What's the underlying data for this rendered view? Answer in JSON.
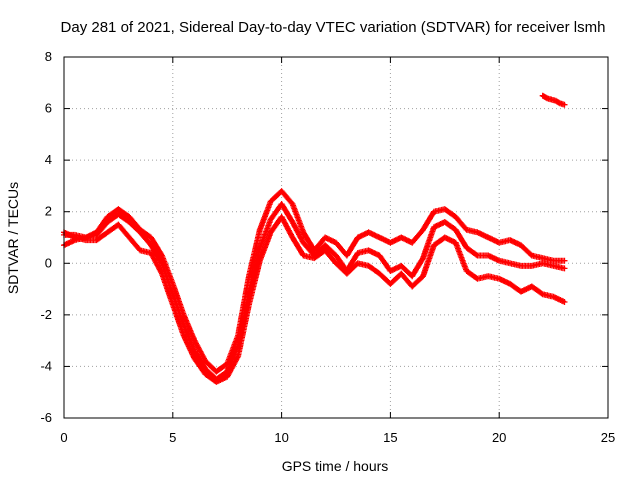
{
  "chart_data": {
    "type": "scatter",
    "title": "Day 281 of 2021, Sidereal Day-to-day VTEC variation (SDTVAR) for receiver lsmh",
    "xlabel": "GPS time / hours",
    "ylabel": "SDTVAR / TECUs",
    "xlim": [
      0,
      25
    ],
    "ylim": [
      -6,
      8
    ],
    "xticks": [
      0,
      5,
      10,
      15,
      20,
      25
    ],
    "yticks": [
      -6,
      -4,
      -2,
      0,
      2,
      4,
      6,
      8
    ],
    "grid": true,
    "marker": "+",
    "series_color": "#ff0000",
    "series": [
      {
        "name": "track-1",
        "x": [
          0.0,
          0.5,
          1.0,
          1.5,
          2.0,
          2.5,
          3.0,
          3.5,
          4.0,
          4.5,
          5.0,
          5.5,
          6.0,
          6.5,
          7.0,
          7.5,
          8.0,
          8.5,
          9.0,
          9.5,
          10.0,
          10.5,
          11.0,
          11.5,
          12.0,
          12.5,
          13.0,
          13.5,
          14.0,
          14.5,
          15.0,
          15.5,
          16.0,
          16.5,
          17.0,
          17.5,
          18.0,
          18.5,
          19.0,
          19.5,
          20.0,
          20.5,
          21.0,
          21.5,
          22.0,
          22.5,
          23.0
        ],
        "y": [
          1.1,
          1.1,
          1.0,
          1.2,
          1.8,
          2.1,
          1.8,
          1.3,
          1.0,
          0.3,
          -0.8,
          -2.0,
          -3.0,
          -3.8,
          -4.2,
          -3.9,
          -2.8,
          -0.5,
          1.3,
          2.4,
          2.8,
          2.3,
          1.2,
          0.5,
          1.0,
          0.8,
          0.3,
          1.0,
          1.2,
          1.0,
          0.8,
          1.0,
          0.8,
          1.3,
          2.0,
          2.1,
          1.8,
          1.3,
          1.2,
          1.0,
          0.8,
          0.9,
          0.7,
          0.3,
          0.2,
          0.1,
          0.1
        ]
      },
      {
        "name": "track-2",
        "x": [
          0.0,
          0.5,
          1.0,
          1.5,
          2.0,
          2.5,
          3.0,
          3.5,
          4.0,
          4.5,
          5.0,
          5.5,
          6.0,
          6.5,
          7.0,
          7.5,
          8.0,
          8.5,
          9.0,
          9.5,
          10.0,
          10.5,
          11.0,
          11.5,
          12.0,
          12.5,
          13.0,
          13.5,
          14.0,
          14.5,
          15.0,
          15.5,
          16.0,
          16.5,
          17.0,
          17.5,
          18.0,
          18.5,
          19.0,
          19.5,
          20.0,
          20.5,
          21.0,
          21.5,
          22.0,
          22.5,
          23.0
        ],
        "y": [
          0.7,
          0.9,
          1.0,
          1.1,
          1.6,
          1.9,
          1.6,
          1.2,
          0.7,
          0.0,
          -1.2,
          -2.4,
          -3.4,
          -4.1,
          -4.5,
          -4.2,
          -3.2,
          -1.1,
          0.6,
          1.7,
          2.3,
          1.6,
          0.8,
          0.3,
          0.7,
          0.3,
          -0.3,
          0.4,
          0.5,
          0.3,
          -0.3,
          -0.1,
          -0.5,
          0.2,
          1.4,
          1.6,
          1.3,
          0.6,
          0.3,
          0.3,
          0.1,
          0.0,
          -0.1,
          -0.1,
          0.0,
          -0.1,
          -0.2
        ]
      },
      {
        "name": "track-3",
        "x": [
          0.0,
          0.5,
          1.0,
          1.5,
          2.0,
          2.5,
          3.0,
          3.5,
          4.0,
          4.5,
          5.0,
          5.5,
          6.0,
          6.5,
          7.0,
          7.5,
          8.0,
          8.5,
          9.0,
          9.5,
          10.0,
          10.5,
          11.0,
          11.5,
          12.0,
          12.5,
          13.0,
          13.5,
          14.0,
          14.5,
          15.0,
          15.5,
          16.0,
          16.5,
          17.0,
          17.5,
          18.0,
          18.5,
          19.0,
          19.5,
          20.0,
          20.5,
          21.0,
          21.5,
          22.0,
          22.5,
          23.0
        ],
        "y": [
          1.2,
          1.0,
          0.9,
          0.9,
          1.2,
          1.5,
          1.0,
          0.5,
          0.4,
          -0.4,
          -1.6,
          -2.8,
          -3.7,
          -4.3,
          -4.6,
          -4.4,
          -3.6,
          -1.6,
          0.1,
          1.2,
          1.8,
          1.0,
          0.3,
          0.2,
          0.5,
          0.0,
          -0.4,
          0.0,
          -0.1,
          -0.4,
          -0.8,
          -0.4,
          -0.9,
          -0.5,
          0.7,
          1.0,
          0.8,
          -0.3,
          -0.6,
          -0.5,
          -0.6,
          -0.8,
          -1.1,
          -0.9,
          -1.2,
          -1.3,
          -1.5
        ]
      },
      {
        "name": "track-4",
        "x": [
          22.0,
          22.2,
          22.4,
          22.6,
          22.8,
          23.0
        ],
        "y": [
          6.5,
          6.4,
          6.35,
          6.3,
          6.2,
          6.15
        ]
      }
    ]
  }
}
